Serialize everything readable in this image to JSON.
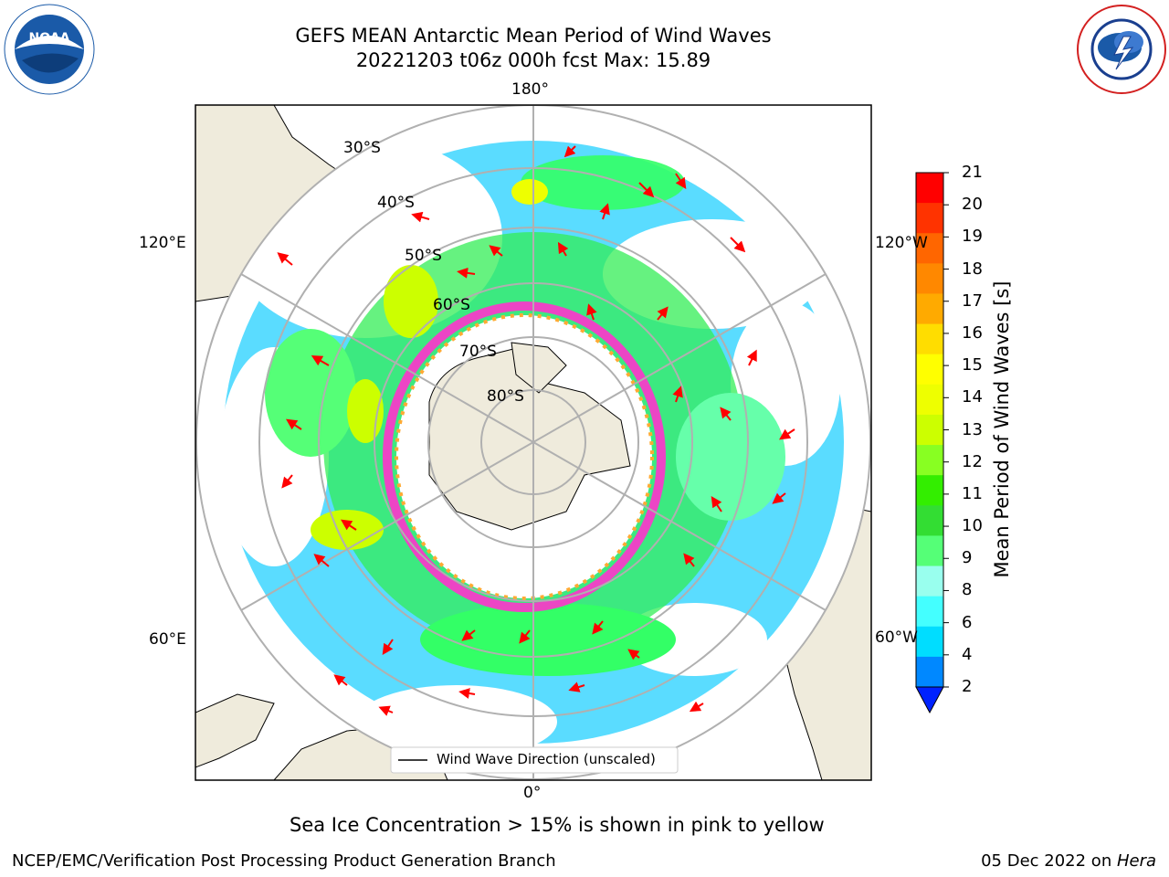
{
  "header": {
    "title_line1": "GEFS MEAN Antarctic Mean Period of Wind Waves",
    "title_line2": "20221203 t06z 000h fcst   Max: 15.89"
  },
  "logos": {
    "left": {
      "text": "NOAA",
      "icon": "noaa-logo-icon",
      "color": "#1a5aa8"
    },
    "right": {
      "icon": "nws-logo-icon",
      "color": "#d32020"
    }
  },
  "map": {
    "projection": "south-polar-stereographic",
    "longitude_labels": [
      "180°",
      "120°E",
      "120°W",
      "60°E",
      "60°W",
      "0°"
    ],
    "latitude_labels": [
      "30°S",
      "40°S",
      "50°S",
      "60°S",
      "70°S",
      "80°S"
    ],
    "colors": {
      "land": "#efebdc",
      "ocean_low": "#00bfff",
      "ocean_mid": "#33ff66",
      "ocean_high": "#ccff00",
      "ice_edge": "#ff33cc",
      "arrow": "#ff0000"
    }
  },
  "legend": {
    "label": "Wind Wave Direction (unscaled)"
  },
  "colorbar": {
    "label": "Mean Period of Wind Waves [s]",
    "ticks": [
      "21",
      "20",
      "19",
      "18",
      "17",
      "16",
      "15",
      "14",
      "13",
      "12",
      "11",
      "10",
      "9",
      "8",
      "6",
      "4",
      "2"
    ],
    "colors": [
      "#ff0000",
      "#ff3300",
      "#ff6600",
      "#ff8800",
      "#ffaa00",
      "#ffdd00",
      "#ffff00",
      "#eeff00",
      "#ccff00",
      "#88ff22",
      "#33ee00",
      "#33dd33",
      "#55ff77",
      "#99ffee",
      "#44ffff",
      "#00ddff",
      "#0088ff"
    ],
    "extend_color": "#0022ff"
  },
  "caption": "Sea Ice Concentration > 15% is shown in pink to yellow",
  "footer": {
    "left": "NCEP/EMC/Verification Post Processing Product Generation Branch",
    "right_date": "05 Dec 2022 on ",
    "right_host": "Hera"
  }
}
